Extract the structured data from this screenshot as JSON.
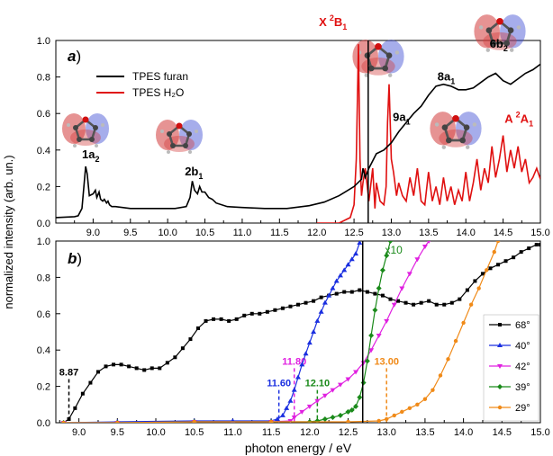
{
  "figure": {
    "ylabel": "normalized intensity (arb. un.)",
    "xlabel": "photon energy / eV",
    "colors": {
      "furan": "#000000",
      "water": "#e01010",
      "s68": "#000000",
      "s40": "#1a2fe0",
      "s42": "#e020e0",
      "s39": "#1a8a1a",
      "s29": "#f08a18",
      "mo_red": "#d23a3a",
      "mo_blue": "#3a4ad2"
    }
  },
  "chart_data": [
    {
      "panel_label": "a",
      "type": "line",
      "xlim": [
        8.5,
        15.0
      ],
      "ylim": [
        0.0,
        1.0
      ],
      "xticks": [
        "9.0",
        "9.5",
        "10.0",
        "10.5",
        "11.0",
        "11.5",
        "12.0",
        "12.5",
        "13.0",
        "13.5",
        "14.0",
        "14.5",
        "15.0"
      ],
      "yticks": [
        "0.0",
        "0.2",
        "0.4",
        "0.6",
        "0.8",
        "1.0"
      ],
      "legend_position": "top-left",
      "series": [
        {
          "name": "TPES furan",
          "x": [
            8.5,
            8.75,
            8.8,
            8.85,
            8.88,
            8.9,
            8.92,
            8.95,
            9.0,
            9.03,
            9.05,
            9.08,
            9.1,
            9.13,
            9.15,
            9.18,
            9.2,
            9.22,
            9.25,
            9.3,
            9.5,
            9.8,
            10.1,
            10.25,
            10.3,
            10.33,
            10.36,
            10.4,
            10.43,
            10.46,
            10.5,
            10.55,
            10.6,
            10.65,
            10.8,
            11.0,
            11.3,
            11.6,
            11.9,
            12.1,
            12.3,
            12.5,
            12.6,
            12.62,
            12.65,
            12.7,
            12.8,
            12.9,
            13.0,
            13.1,
            13.2,
            13.3,
            13.4,
            13.5,
            13.6,
            13.7,
            13.8,
            13.9,
            14.0,
            14.1,
            14.2,
            14.3,
            14.4,
            14.5,
            14.6,
            14.7,
            14.8,
            14.9,
            15.0
          ],
          "y": [
            0.03,
            0.035,
            0.04,
            0.08,
            0.22,
            0.31,
            0.27,
            0.15,
            0.16,
            0.18,
            0.14,
            0.17,
            0.13,
            0.12,
            0.13,
            0.11,
            0.12,
            0.1,
            0.09,
            0.09,
            0.08,
            0.08,
            0.08,
            0.09,
            0.14,
            0.23,
            0.18,
            0.16,
            0.2,
            0.17,
            0.17,
            0.14,
            0.13,
            0.11,
            0.09,
            0.085,
            0.08,
            0.08,
            0.095,
            0.115,
            0.15,
            0.2,
            0.24,
            0.3,
            0.25,
            0.3,
            0.38,
            0.4,
            0.44,
            0.5,
            0.55,
            0.6,
            0.64,
            0.7,
            0.75,
            0.76,
            0.75,
            0.73,
            0.73,
            0.74,
            0.77,
            0.8,
            0.82,
            0.78,
            0.76,
            0.79,
            0.82,
            0.84,
            0.87
          ]
        },
        {
          "name": "TPES H₂O",
          "x": [
            12.0,
            12.05,
            12.1,
            12.2,
            12.3,
            12.4,
            12.45,
            12.5,
            12.53,
            12.56,
            12.58,
            12.6,
            12.62,
            12.65,
            12.7,
            12.75,
            12.78,
            12.8,
            12.85,
            12.9,
            12.93,
            12.95,
            12.97,
            13.0,
            13.03,
            13.07,
            13.1,
            13.15,
            13.2,
            13.25,
            13.3,
            13.35,
            13.4,
            13.45,
            13.5,
            13.55,
            13.6,
            13.65,
            13.7,
            13.75,
            13.8,
            13.85,
            13.9,
            13.95,
            14.0,
            14.05,
            14.1,
            14.15,
            14.2,
            14.25,
            14.3,
            14.35,
            14.4,
            14.45,
            14.5,
            14.55,
            14.6,
            14.65,
            14.7,
            14.75,
            14.8,
            14.85,
            14.9,
            14.95,
            15.0
          ],
          "y": [
            0.0,
            0.0,
            0.0,
            0.0,
            0.0,
            0.02,
            0.03,
            0.1,
            0.35,
            0.98,
            0.35,
            0.15,
            0.22,
            0.3,
            0.12,
            0.3,
            0.08,
            0.22,
            0.12,
            0.1,
            0.2,
            0.55,
            0.76,
            0.35,
            0.28,
            0.15,
            0.22,
            0.15,
            0.12,
            0.25,
            0.15,
            0.3,
            0.12,
            0.1,
            0.28,
            0.12,
            0.2,
            0.1,
            0.25,
            0.12,
            0.2,
            0.1,
            0.18,
            0.12,
            0.28,
            0.12,
            0.22,
            0.35,
            0.18,
            0.3,
            0.22,
            0.42,
            0.25,
            0.35,
            0.48,
            0.28,
            0.4,
            0.3,
            0.42,
            0.28,
            0.35,
            0.22,
            0.25,
            0.3,
            0.24
          ]
        }
      ],
      "annotations": [
        {
          "text": "1a",
          "sub": "2",
          "sup": "",
          "x": 8.85,
          "y": 0.355
        },
        {
          "text": "2b",
          "sub": "1",
          "sup": "",
          "x": 10.23,
          "y": 0.26
        },
        {
          "text": "9a",
          "sub": "1",
          "sup": "",
          "x": 13.02,
          "y": 0.56
        },
        {
          "text": "8a",
          "sub": "1",
          "sup": "",
          "x": 13.62,
          "y": 0.78
        },
        {
          "text": "6b",
          "sub": "2",
          "sup": "",
          "x": 14.32,
          "y": 0.96
        },
        {
          "text": "X",
          "sub": "1",
          "sup": "2",
          "extra": "B",
          "x": 12.03,
          "y": 1.08,
          "color": "#e01010"
        },
        {
          "text": "A",
          "sub": "1",
          "sup": "2",
          "extra": "A",
          "x": 14.52,
          "y": 0.55,
          "color": "#e01010"
        }
      ],
      "vertical_line_x": 12.69
    },
    {
      "panel_label": "b",
      "type": "line",
      "xlim": [
        8.7,
        15.0
      ],
      "ylim": [
        0.0,
        1.0
      ],
      "xticks": [
        "9.0",
        "9.5",
        "10.0",
        "10.5",
        "11.0",
        "11.5",
        "12.0",
        "12.5",
        "13.0",
        "13.5",
        "14.0",
        "14.5",
        "15.0"
      ],
      "yticks": [
        "0.0",
        "0.2",
        "0.4",
        "0.6",
        "0.8",
        "1.0"
      ],
      "legend_position": "right",
      "series": [
        {
          "name": "68°",
          "x": [
            8.8,
            8.87,
            8.95,
            9.05,
            9.15,
            9.25,
            9.35,
            9.45,
            9.55,
            9.65,
            9.75,
            9.85,
            9.95,
            10.05,
            10.15,
            10.25,
            10.35,
            10.45,
            10.55,
            10.65,
            10.75,
            10.85,
            10.95,
            11.05,
            11.15,
            11.25,
            11.35,
            11.45,
            11.55,
            11.65,
            11.75,
            11.85,
            11.95,
            12.05,
            12.15,
            12.25,
            12.35,
            12.45,
            12.55,
            12.65,
            12.75,
            12.85,
            12.95,
            13.05,
            13.15,
            13.25,
            13.35,
            13.45,
            13.55,
            13.65,
            13.75,
            13.85,
            13.95,
            14.05,
            14.15,
            14.25,
            14.35,
            14.45,
            14.55,
            14.65,
            14.75,
            14.85,
            14.95,
            15.0
          ],
          "y": [
            0.0,
            0.02,
            0.08,
            0.16,
            0.22,
            0.28,
            0.31,
            0.32,
            0.32,
            0.31,
            0.3,
            0.29,
            0.3,
            0.3,
            0.33,
            0.36,
            0.41,
            0.46,
            0.52,
            0.56,
            0.57,
            0.57,
            0.56,
            0.57,
            0.59,
            0.6,
            0.6,
            0.61,
            0.62,
            0.63,
            0.64,
            0.65,
            0.66,
            0.67,
            0.69,
            0.7,
            0.71,
            0.72,
            0.72,
            0.73,
            0.72,
            0.71,
            0.7,
            0.68,
            0.67,
            0.66,
            0.65,
            0.66,
            0.67,
            0.65,
            0.65,
            0.66,
            0.68,
            0.73,
            0.78,
            0.82,
            0.85,
            0.87,
            0.89,
            0.91,
            0.94,
            0.96,
            0.98,
            0.98
          ]
        },
        {
          "name": "40°",
          "x": [
            8.8,
            9.5,
            10.5,
            11.0,
            11.5,
            11.58,
            11.65,
            11.7,
            11.75,
            11.8,
            11.85,
            11.9,
            11.95,
            12.0,
            12.05,
            12.1,
            12.15,
            12.2,
            12.25,
            12.3,
            12.35,
            12.4,
            12.45,
            12.5,
            12.55,
            12.6,
            12.65
          ],
          "y": [
            0.0,
            0.005,
            0.01,
            0.01,
            0.01,
            0.02,
            0.04,
            0.08,
            0.12,
            0.18,
            0.25,
            0.32,
            0.38,
            0.44,
            0.5,
            0.56,
            0.61,
            0.66,
            0.7,
            0.74,
            0.78,
            0.81,
            0.84,
            0.87,
            0.9,
            0.93,
            0.99
          ]
        },
        {
          "name": "42°",
          "x": [
            8.8,
            9.5,
            10.5,
            11.5,
            11.75,
            11.8,
            11.9,
            12.0,
            12.1,
            12.2,
            12.3,
            12.4,
            12.5,
            12.6,
            12.7,
            12.8,
            12.9,
            13.0,
            13.1,
            13.2,
            13.3,
            13.4,
            13.5,
            13.55
          ],
          "y": [
            0.0,
            0.0,
            0.005,
            0.005,
            0.01,
            0.03,
            0.06,
            0.09,
            0.12,
            0.15,
            0.18,
            0.21,
            0.24,
            0.28,
            0.33,
            0.4,
            0.48,
            0.56,
            0.65,
            0.74,
            0.82,
            0.9,
            0.97,
            1.0
          ]
        },
        {
          "name": "39°",
          "x": [
            8.8,
            9.5,
            10.5,
            11.5,
            12.0,
            12.1,
            12.2,
            12.3,
            12.4,
            12.5,
            12.55,
            12.6,
            12.65,
            12.7,
            12.75,
            12.8,
            12.85,
            12.9,
            12.95,
            13.0,
            13.05
          ],
          "y": [
            0.0,
            0.0,
            0.005,
            0.005,
            0.005,
            0.01,
            0.02,
            0.03,
            0.04,
            0.06,
            0.07,
            0.09,
            0.14,
            0.22,
            0.34,
            0.48,
            0.62,
            0.74,
            0.84,
            0.92,
            1.0
          ]
        },
        {
          "name": "29°",
          "x": [
            8.8,
            9.5,
            10.5,
            11.5,
            12.5,
            12.9,
            13.0,
            13.1,
            13.2,
            13.3,
            13.4,
            13.5,
            13.6,
            13.7,
            13.8,
            13.9,
            14.0,
            14.1,
            14.2,
            14.3,
            14.4,
            14.45
          ],
          "y": [
            0.0,
            0.0,
            0.005,
            0.005,
            0.005,
            0.01,
            0.02,
            0.04,
            0.06,
            0.08,
            0.1,
            0.13,
            0.18,
            0.26,
            0.35,
            0.45,
            0.55,
            0.65,
            0.74,
            0.84,
            0.94,
            1.0
          ]
        }
      ],
      "threshold_markers": [
        {
          "label": "8.87",
          "x": 8.87,
          "y": 0.26,
          "color": "#000000"
        },
        {
          "label": "11.60",
          "x": 11.6,
          "y": 0.2,
          "color": "#1a2fe0"
        },
        {
          "label": "11.80",
          "x": 11.8,
          "y": 0.32,
          "color": "#e020e0"
        },
        {
          "label": "12.10",
          "x": 12.1,
          "y": 0.2,
          "color": "#1a8a1a"
        },
        {
          "label": "13.00",
          "x": 13.0,
          "y": 0.32,
          "color": "#f08a18"
        }
      ],
      "annotations": [
        {
          "text": "x10",
          "x": 12.98,
          "y": 0.93,
          "color": "#1a8a1a"
        }
      ],
      "vertical_line_x": 12.69
    }
  ]
}
